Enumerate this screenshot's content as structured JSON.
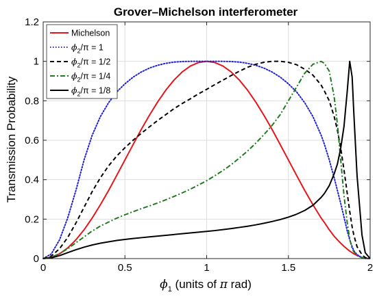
{
  "chart_data": {
    "type": "line",
    "title": "Grover–Michelson interferometer",
    "xlabel": {
      "symbol": "ϕ",
      "sub": "1",
      "text": " (units of ",
      "pi": "π",
      "rest": " rad)"
    },
    "ylabel": "Transmission Probability",
    "xlim": [
      0,
      2
    ],
    "ylim": [
      0,
      1.2
    ],
    "xticks": [
      0,
      0.5,
      1,
      1.5,
      2
    ],
    "yticks": [
      0,
      0.2,
      0.4,
      0.6,
      0.8,
      1,
      1.2
    ],
    "xtick_labels": [
      "0",
      "0.5",
      "1",
      "1.5",
      "2"
    ],
    "ytick_labels": [
      "0",
      "0.2",
      "0.4",
      "0.6",
      "0.8",
      "1",
      "1.2"
    ],
    "grid": true,
    "legend_position": "top-left",
    "x": [
      0,
      0.05,
      0.1,
      0.15,
      0.2,
      0.25,
      0.3,
      0.35,
      0.4,
      0.45,
      0.5,
      0.55,
      0.6,
      0.65,
      0.7,
      0.75,
      0.8,
      0.85,
      0.9,
      0.95,
      1.0,
      1.05,
      1.1,
      1.15,
      1.2,
      1.25,
      1.3,
      1.35,
      1.4,
      1.45,
      1.5,
      1.55,
      1.6,
      1.65,
      1.7,
      1.72,
      1.75,
      1.78,
      1.8,
      1.82,
      1.84,
      1.86,
      1.875,
      1.89,
      1.9,
      1.92,
      1.95,
      1.97,
      2.0
    ],
    "series": [
      {
        "name": "Michelson",
        "color": "#e8141a",
        "dash": "solid",
        "values": [
          0,
          0.006,
          0.024,
          0.054,
          0.095,
          0.146,
          0.206,
          0.273,
          0.345,
          0.422,
          0.5,
          0.578,
          0.655,
          0.727,
          0.794,
          0.854,
          0.905,
          0.946,
          0.976,
          0.994,
          1.0,
          0.994,
          0.976,
          0.946,
          0.905,
          0.854,
          0.794,
          0.727,
          0.655,
          0.578,
          0.5,
          0.422,
          0.345,
          0.273,
          0.206,
          0.183,
          0.146,
          0.113,
          0.095,
          0.078,
          0.062,
          0.048,
          0.038,
          0.03,
          0.024,
          0.016,
          0.006,
          0.002,
          0
        ]
      },
      {
        "name": {
          "symbol": "ϕ",
          "sub": "2",
          "rest": "/π = 1"
        },
        "color": "#1f1fd6",
        "dash": "dotted",
        "values": [
          0,
          0.024,
          0.095,
          0.206,
          0.345,
          0.5,
          0.626,
          0.72,
          0.79,
          0.845,
          0.886,
          0.92,
          0.946,
          0.966,
          0.98,
          0.99,
          0.996,
          0.999,
          1.0,
          1.0,
          1.0,
          1.0,
          1.0,
          0.999,
          0.996,
          0.99,
          0.98,
          0.966,
          0.946,
          0.92,
          0.886,
          0.845,
          0.79,
          0.72,
          0.626,
          0.58,
          0.5,
          0.41,
          0.345,
          0.28,
          0.21,
          0.14,
          0.095,
          0.06,
          0.04,
          0.02,
          0.005,
          0.001,
          0
        ]
      },
      {
        "name": {
          "symbol": "ϕ",
          "sub": "2",
          "rest": "/π = 1/2"
        },
        "color": "#000000",
        "dash": "dashed",
        "values": [
          0,
          0.013,
          0.05,
          0.107,
          0.18,
          0.26,
          0.34,
          0.41,
          0.47,
          0.52,
          0.562,
          0.6,
          0.635,
          0.668,
          0.7,
          0.73,
          0.76,
          0.786,
          0.81,
          0.835,
          0.858,
          0.882,
          0.905,
          0.928,
          0.95,
          0.97,
          0.985,
          0.995,
          1.0,
          1.0,
          0.995,
          0.983,
          0.96,
          0.93,
          0.88,
          0.85,
          0.8,
          0.72,
          0.65,
          0.56,
          0.45,
          0.33,
          0.24,
          0.16,
          0.12,
          0.06,
          0.02,
          0.005,
          0
        ]
      },
      {
        "name": {
          "symbol": "ϕ",
          "sub": "2",
          "rest": "/π = 1/4"
        },
        "color": "#1f7a1f",
        "dash": "dashdot",
        "values": [
          0,
          0.007,
          0.025,
          0.05,
          0.08,
          0.11,
          0.14,
          0.165,
          0.185,
          0.205,
          0.222,
          0.238,
          0.253,
          0.267,
          0.282,
          0.298,
          0.315,
          0.333,
          0.352,
          0.373,
          0.395,
          0.42,
          0.447,
          0.476,
          0.51,
          0.545,
          0.585,
          0.628,
          0.675,
          0.73,
          0.8,
          0.87,
          0.94,
          0.985,
          1.0,
          0.99,
          0.95,
          0.82,
          0.68,
          0.5,
          0.32,
          0.18,
          0.1,
          0.05,
          0.035,
          0.015,
          0.004,
          0.001,
          0
        ]
      },
      {
        "name": {
          "symbol": "ϕ",
          "sub": "2",
          "rest": "/π = 1/8"
        },
        "color": "#000000",
        "dash": "solid",
        "values": [
          0,
          0.004,
          0.015,
          0.03,
          0.045,
          0.058,
          0.069,
          0.078,
          0.085,
          0.092,
          0.097,
          0.102,
          0.106,
          0.11,
          0.114,
          0.118,
          0.122,
          0.126,
          0.13,
          0.134,
          0.138,
          0.142,
          0.147,
          0.152,
          0.158,
          0.164,
          0.171,
          0.179,
          0.188,
          0.198,
          0.21,
          0.225,
          0.244,
          0.27,
          0.31,
          0.33,
          0.37,
          0.43,
          0.48,
          0.56,
          0.67,
          0.85,
          1.0,
          0.92,
          0.74,
          0.42,
          0.12,
          0.03,
          0
        ]
      }
    ]
  }
}
